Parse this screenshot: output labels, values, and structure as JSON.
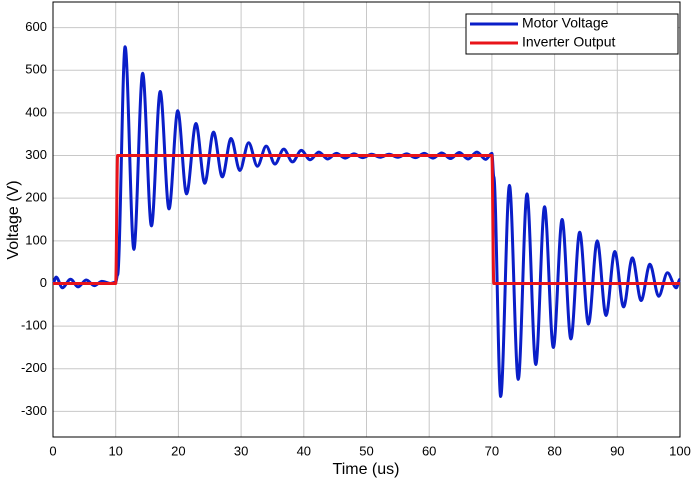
{
  "chart_data": {
    "type": "line",
    "x_label": "Time (us)",
    "y_label": "Voltage (V)",
    "xlim": [
      0,
      100
    ],
    "xticks": [
      0,
      10,
      20,
      30,
      40,
      50,
      60,
      70,
      80,
      90,
      100
    ],
    "ylim": [
      -360,
      660
    ],
    "yticks": [
      -300,
      -200,
      -100,
      0,
      100,
      200,
      300,
      400,
      500,
      600
    ],
    "grid": true,
    "legend": "upper right",
    "series": [
      {
        "name": "Motor Voltage",
        "color": "#0a1ec8",
        "x": [
          0,
          0.5,
          1.5,
          2.8,
          4,
          5.3,
          6.6,
          7.8,
          9.2,
          10,
          10.3,
          11.5,
          12.9,
          14.3,
          15.7,
          17.1,
          18.5,
          19.9,
          21.3,
          22.8,
          24.2,
          25.6,
          27,
          28.4,
          29.8,
          31.2,
          32.6,
          34,
          35.4,
          36.8,
          38.2,
          39.6,
          41,
          42.4,
          43.8,
          45.2,
          46.6,
          48,
          49.4,
          50.8,
          52.2,
          53.6,
          55,
          56.4,
          57.8,
          59.2,
          60.6,
          62,
          63.4,
          64.8,
          66.2,
          67.6,
          69,
          70,
          70.3,
          71.4,
          72.8,
          74.2,
          75.6,
          77,
          78.4,
          79.8,
          81.2,
          82.6,
          84,
          85.4,
          86.8,
          88.2,
          89.6,
          91,
          92.4,
          93.8,
          95.2,
          96.6,
          98,
          99.4,
          100
        ],
        "values": [
          0,
          15,
          -10,
          10,
          -8,
          8,
          -5,
          5,
          0,
          3,
          20,
          555,
          80,
          493,
          135,
          450,
          175,
          405,
          210,
          375,
          235,
          355,
          250,
          340,
          265,
          330,
          275,
          322,
          280,
          315,
          285,
          312,
          290,
          308,
          292,
          305,
          294,
          304,
          295,
          303,
          296,
          303,
          296,
          304,
          295,
          305,
          294,
          306,
          293,
          307,
          292,
          308,
          291,
          305,
          250,
          -265,
          230,
          -225,
          210,
          -190,
          180,
          -150,
          150,
          -130,
          120,
          -95,
          100,
          -75,
          75,
          -55,
          60,
          -40,
          45,
          -30,
          25,
          -10,
          10
        ]
      },
      {
        "name": "Inverter Output",
        "color": "#e8141a",
        "x": [
          0,
          10,
          10.3,
          70,
          70.3,
          100
        ],
        "values": [
          0,
          0,
          300,
          300,
          0,
          0
        ]
      }
    ]
  }
}
